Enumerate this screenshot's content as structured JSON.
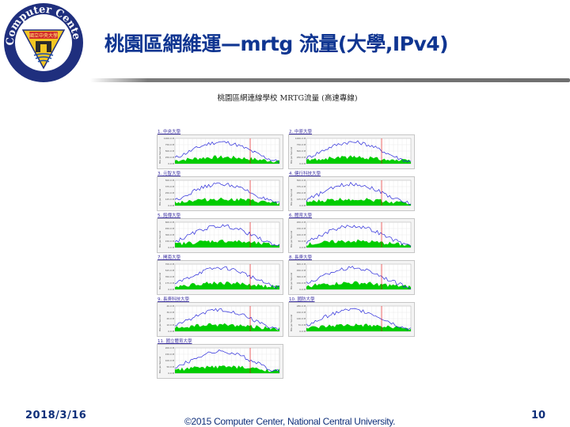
{
  "header": {
    "title": "桃園區網維運—mrtg 流量(大學,IPv4)",
    "logo": {
      "ring_text_top": "Computer Center",
      "ring_text_bottom": "www.cc.ncu.edu.tw",
      "badge_text": "國立中央大學",
      "colors": {
        "ring": "#1f2f7e",
        "triangle": "#f1c40f",
        "badge": "#d22b2b"
      }
    }
  },
  "content": {
    "image_title": "桃園區網連線學校 MRTG流量 (高速專線)",
    "y_axis_label": "Bits per Second",
    "colors": {
      "in_traffic": "#00cc00",
      "out_traffic": "#2a2adb",
      "marker": "#e00000",
      "grid_bg": "#f4f4f4"
    },
    "charts": [
      {
        "label": "1. 中央大學",
        "y_ticks": [
          "1000.0 M",
          "750.0 M",
          "500.0 M",
          "250.0 M",
          "0.0 M"
        ]
      },
      {
        "label": "2. 中原大學",
        "y_ticks": [
          "1000.0 M",
          "750.0 M",
          "500.0 M",
          "250.0 M",
          "0.0 M"
        ]
      },
      {
        "label": "3. 元智大學",
        "y_ticks": [
          "500.0 M",
          "375.0 M",
          "250.0 M",
          "125.0 M",
          "0.0 M"
        ]
      },
      {
        "label": "4. 健行科技大學",
        "y_ticks": [
          "500.0 M",
          "375.0 M",
          "250.0 M",
          "125.0 M",
          "0.0 M"
        ]
      },
      {
        "label": "5. 銘傳大學",
        "y_ticks": [
          "600.0 M",
          "450.0 M",
          "300.0 M",
          "150.0 M",
          "0.0 M"
        ]
      },
      {
        "label": "6. 體育大學",
        "y_ticks": [
          "200.0 M",
          "150.0 M",
          "100.0 M",
          "50.0 M",
          "0.0 M"
        ]
      },
      {
        "label": "7. 開南大學",
        "y_ticks": [
          "700.0 M",
          "525.0 M",
          "350.0 M",
          "175.0 M",
          "0.0 M"
        ]
      },
      {
        "label": "8. 長庚大學",
        "y_ticks": [
          "600.0 M",
          "450.0 M",
          "300.0 M",
          "150.0 M",
          "0.0 M"
        ]
      },
      {
        "label": "9. 長庚科技大學",
        "y_ticks": [
          "40.0 M",
          "30.0 M",
          "20.0 M",
          "10.0 M",
          "0.0 M"
        ]
      },
      {
        "label": "10. 國防大學",
        "y_ticks": [
          "280.0 M",
          "210.0 M",
          "140.0 M",
          "70.0 M",
          "0.0 M"
        ]
      },
      {
        "label": "11. 國立體育大學",
        "y_ticks": [
          "200.0 M",
          "150.0 M",
          "100.0 M",
          "50.0 M",
          "0.0 M"
        ]
      }
    ]
  },
  "footer": {
    "date": "2018/3/16",
    "copyright": "©2015 Computer Center, National Central University.",
    "page_number": "10"
  }
}
